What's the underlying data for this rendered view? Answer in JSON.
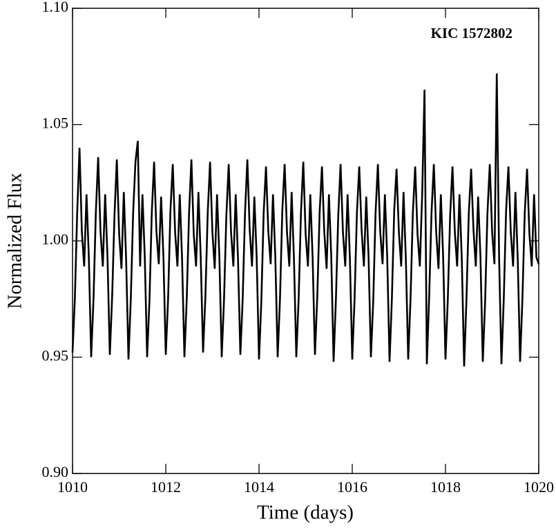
{
  "chart_data": {
    "type": "line",
    "annotation": "KIC 1572802",
    "xlabel": "Time (days)",
    "ylabel": "Normalized Flux",
    "color": "#000000",
    "xlim": [
      1010,
      1020
    ],
    "xticks": [
      1010,
      1012,
      1014,
      1016,
      1018,
      1020
    ],
    "ylim": [
      0.9,
      1.1
    ],
    "yticks": [
      {
        "value": 0.9,
        "label": "0.90"
      },
      0.95,
      {
        "value": 1.0,
        "label": "1.00"
      },
      1.05,
      {
        "value": 1.1,
        "label": "1.10"
      }
    ],
    "x": [
      1010,
      1010.05,
      1010.1,
      1010.15,
      1010.2,
      1010.25,
      1010.3,
      1010.35,
      1010.4,
      1010.45,
      1010.5,
      1010.55,
      1010.6,
      1010.65,
      1010.7,
      1010.75,
      1010.8,
      1010.85,
      1010.9,
      1010.95,
      1011,
      1011.05,
      1011.1,
      1011.15,
      1011.2,
      1011.25,
      1011.3,
      1011.35,
      1011.4,
      1011.45,
      1011.5,
      1011.55,
      1011.6,
      1011.65,
      1011.7,
      1011.75,
      1011.8,
      1011.85,
      1011.9,
      1011.95,
      1012,
      1012.05,
      1012.1,
      1012.15,
      1012.2,
      1012.25,
      1012.3,
      1012.35,
      1012.4,
      1012.45,
      1012.5,
      1012.55,
      1012.6,
      1012.65,
      1012.7,
      1012.75,
      1012.8,
      1012.85,
      1012.9,
      1012.95,
      1013,
      1013.05,
      1013.1,
      1013.15,
      1013.2,
      1013.25,
      1013.3,
      1013.35,
      1013.4,
      1013.45,
      1013.5,
      1013.55,
      1013.6,
      1013.65,
      1013.7,
      1013.75,
      1013.8,
      1013.85,
      1013.9,
      1013.95,
      1014,
      1014.05,
      1014.1,
      1014.15,
      1014.2,
      1014.25,
      1014.3,
      1014.35,
      1014.4,
      1014.45,
      1014.5,
      1014.55,
      1014.6,
      1014.65,
      1014.7,
      1014.75,
      1014.8,
      1014.85,
      1014.9,
      1014.95,
      1015,
      1015.05,
      1015.1,
      1015.15,
      1015.2,
      1015.25,
      1015.3,
      1015.35,
      1015.4,
      1015.45,
      1015.5,
      1015.55,
      1015.6,
      1015.65,
      1015.7,
      1015.75,
      1015.8,
      1015.85,
      1015.9,
      1015.95,
      1016,
      1016.05,
      1016.1,
      1016.15,
      1016.2,
      1016.25,
      1016.3,
      1016.35,
      1016.4,
      1016.45,
      1016.5,
      1016.55,
      1016.6,
      1016.65,
      1016.7,
      1016.75,
      1016.8,
      1016.85,
      1016.9,
      1016.95,
      1017,
      1017.05,
      1017.1,
      1017.15,
      1017.2,
      1017.25,
      1017.3,
      1017.35,
      1017.4,
      1017.45,
      1017.5,
      1017.55,
      1017.6,
      1017.65,
      1017.7,
      1017.75,
      1017.8,
      1017.85,
      1017.9,
      1017.95,
      1018,
      1018.05,
      1018.1,
      1018.15,
      1018.2,
      1018.25,
      1018.3,
      1018.35,
      1018.4,
      1018.45,
      1018.5,
      1018.55,
      1018.6,
      1018.65,
      1018.7,
      1018.75,
      1018.8,
      1018.85,
      1018.9,
      1018.95,
      1019,
      1019.05,
      1019.1,
      1019.15,
      1019.2,
      1019.25,
      1019.3,
      1019.35,
      1019.4,
      1019.45,
      1019.5,
      1019.55,
      1019.6,
      1019.65,
      1019.7,
      1019.75,
      1019.8,
      1019.85,
      1019.9,
      1019.95,
      1020
    ],
    "values": [
      0.952,
      0.975,
      1.012,
      1.04,
      1.004,
      0.989,
      1.02,
      0.993,
      0.95,
      0.975,
      1.012,
      1.036,
      1.004,
      0.989,
      1.02,
      0.993,
      0.951,
      0.976,
      1.011,
      1.035,
      1.003,
      0.988,
      1.021,
      0.992,
      0.949,
      0.975,
      1.012,
      1.034,
      1.043,
      0.989,
      1.02,
      0.993,
      0.95,
      0.974,
      1.012,
      1.034,
      1.004,
      0.99,
      1.019,
      0.993,
      0.951,
      0.975,
      1.013,
      1.033,
      1.004,
      0.989,
      1.02,
      0.992,
      0.95,
      0.975,
      1.012,
      1.035,
      1.003,
      0.989,
      1.021,
      0.993,
      0.952,
      0.976,
      1.012,
      1.034,
      1.004,
      0.988,
      1.02,
      0.993,
      0.95,
      0.975,
      1.011,
      1.033,
      1.004,
      0.989,
      1.02,
      0.992,
      0.951,
      0.975,
      1.012,
      1.035,
      1.005,
      0.989,
      1.019,
      0.993,
      0.949,
      0.974,
      1.012,
      1.032,
      1.004,
      0.99,
      1.02,
      0.993,
      0.95,
      0.975,
      1.013,
      1.033,
      1.004,
      0.989,
      1.021,
      0.992,
      0.95,
      0.975,
      1.012,
      1.034,
      1.003,
      0.989,
      1.02,
      0.993,
      0.951,
      0.976,
      1.012,
      1.032,
      1.004,
      0.988,
      1.02,
      0.993,
      0.948,
      0.975,
      1.011,
      1.033,
      1.004,
      0.989,
      1.02,
      0.992,
      0.949,
      0.975,
      1.012,
      1.032,
      1.005,
      0.989,
      1.019,
      0.993,
      0.95,
      0.974,
      1.012,
      1.033,
      1.004,
      0.99,
      1.02,
      0.993,
      0.948,
      0.975,
      1.013,
      1.031,
      1.004,
      0.989,
      1.021,
      0.992,
      0.949,
      0.975,
      1.012,
      1.032,
      1.003,
      0.989,
      1.02,
      1.065,
      0.947,
      0.976,
      1.012,
      1.033,
      1.004,
      0.988,
      1.02,
      0.993,
      0.949,
      0.975,
      1.011,
      1.032,
      1.004,
      0.989,
      1.02,
      0.992,
      0.946,
      0.975,
      1.012,
      1.031,
      1.005,
      0.989,
      1.019,
      0.993,
      0.948,
      0.974,
      1.012,
      1.033,
      1.004,
      0.99,
      1.072,
      0.993,
      0.947,
      0.975,
      1.013,
      1.032,
      1.004,
      0.989,
      1.021,
      0.992,
      0.948,
      0.975,
      1.012,
      1.031,
      1.003,
      0.989,
      1.02,
      0.993,
      0.99
    ]
  }
}
